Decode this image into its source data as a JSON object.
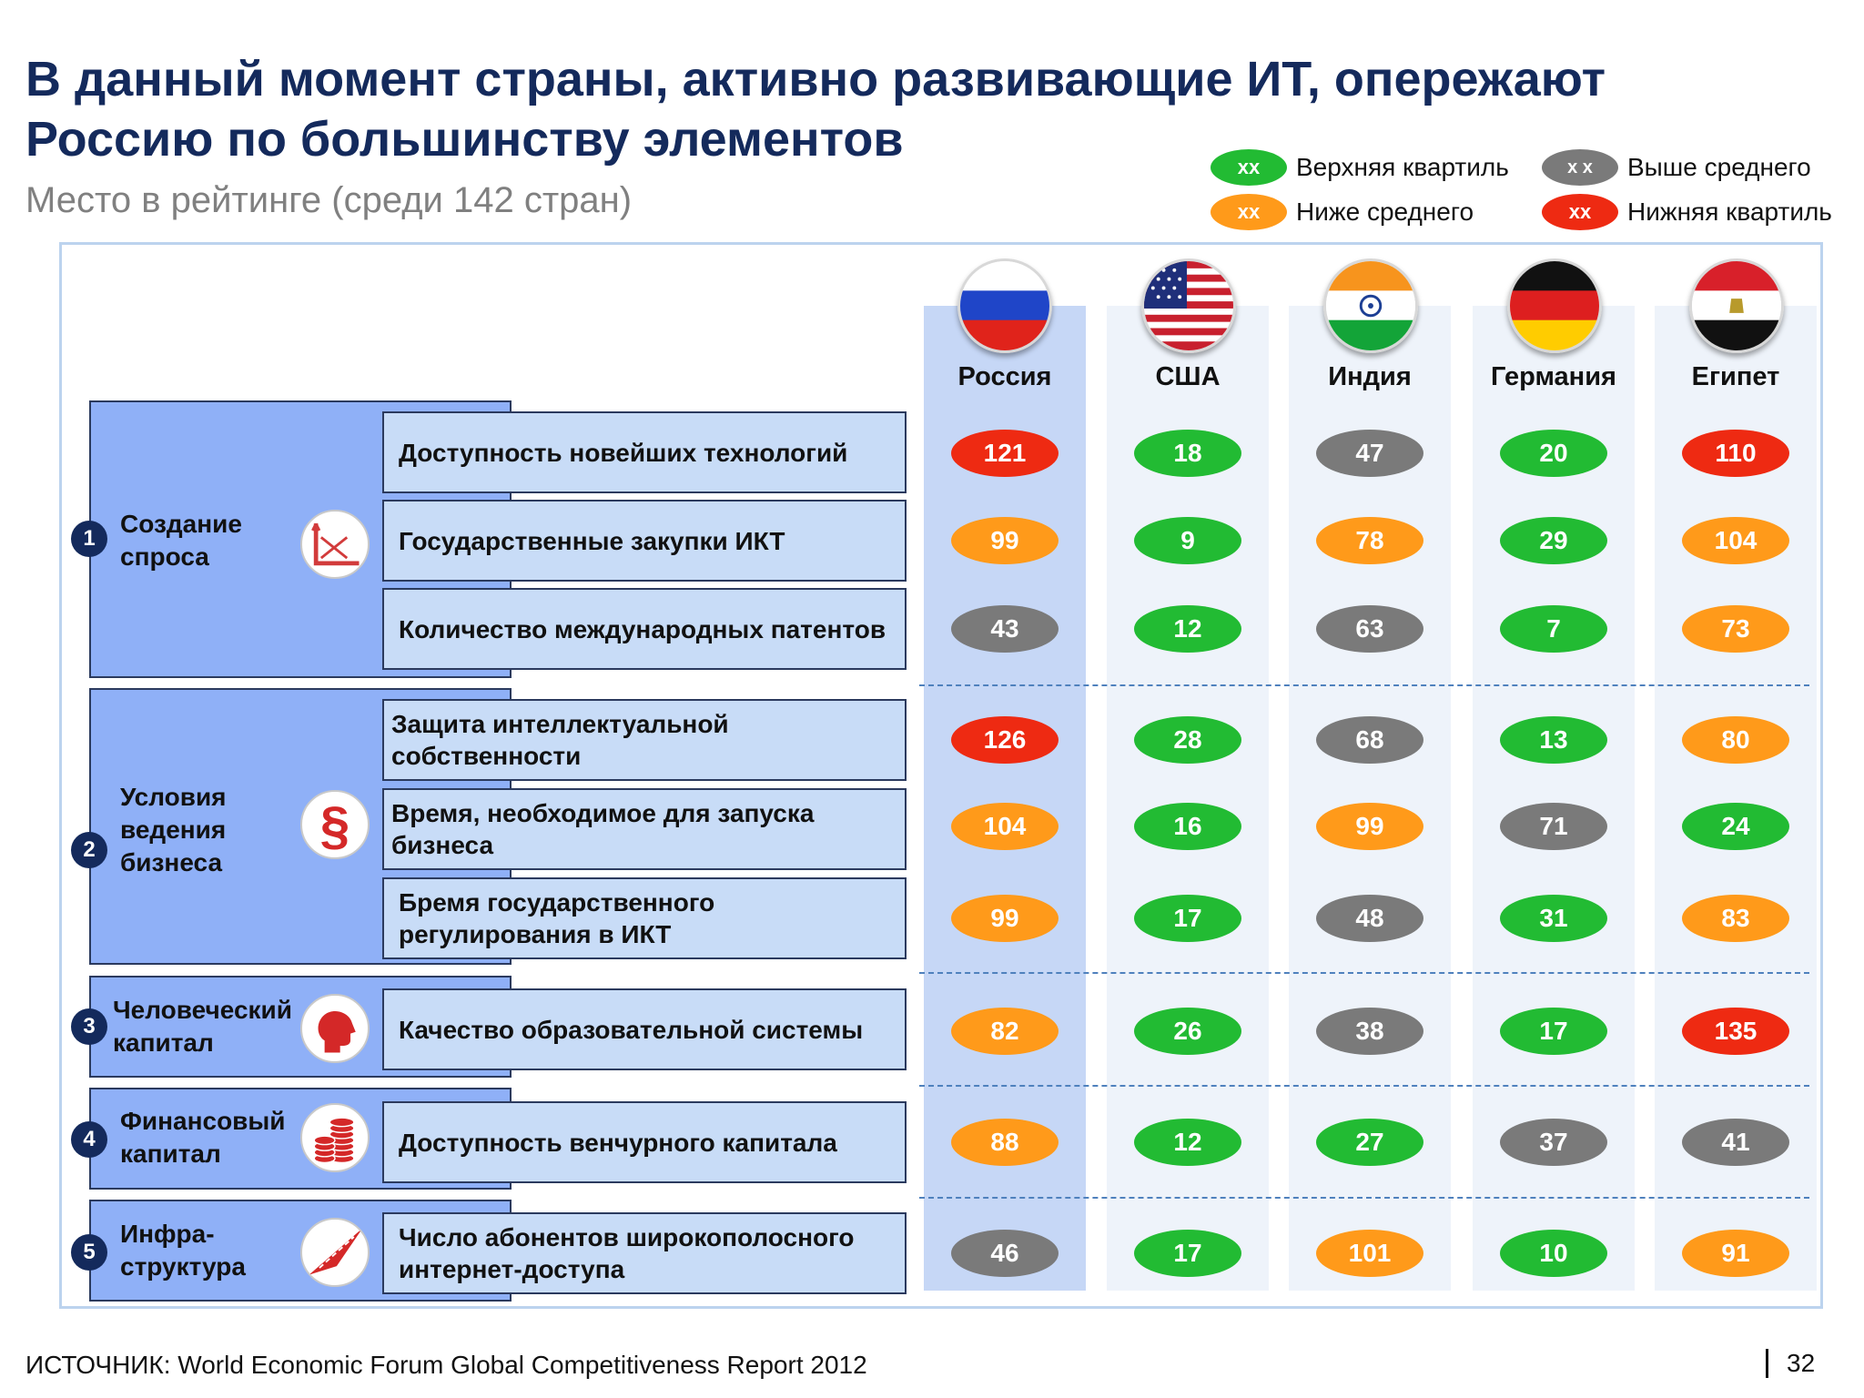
{
  "title": "В данный момент страны, активно развивающие ИТ, опережают Россию по большинству элементов",
  "subtitle": "Место в рейтинге (среди 142 стран)",
  "legend": {
    "green": {
      "pill": "xx",
      "label": "Верхняя квартиль",
      "color": "#22bb33"
    },
    "gray": {
      "pill": "x x",
      "label": "Выше среднего",
      "color": "#7a7a7a"
    },
    "orange": {
      "pill": "xx",
      "label": "Ниже среднего",
      "color": "#ff9a1a"
    },
    "red": {
      "pill": "xx",
      "label": "Нижняя квартиль",
      "color": "#ee2a12"
    }
  },
  "countries": [
    "Россия",
    "США",
    "Индия",
    "Германия",
    "Египет"
  ],
  "flags": [
    "russia-flag-icon",
    "usa-flag-icon",
    "india-flag-icon",
    "germany-flag-icon",
    "egypt-flag-icon"
  ],
  "categories": [
    {
      "num": "1",
      "label": "Создание спроса",
      "icon": "chart-icon"
    },
    {
      "num": "2",
      "label": "Условия ведения бизнеса",
      "icon": "paragraph-icon"
    },
    {
      "num": "3",
      "label": "Человеческий капитал",
      "icon": "head-icon"
    },
    {
      "num": "4",
      "label": "Финансовый капитал",
      "icon": "coins-icon"
    },
    {
      "num": "5",
      "label": "Инфра-структура",
      "icon": "road-icon"
    }
  ],
  "rows": [
    {
      "label": "Доступность новейших технологий",
      "values": [
        "121",
        "18",
        "47",
        "20",
        "110"
      ],
      "colors": [
        "red",
        "green",
        "gray",
        "green",
        "red"
      ]
    },
    {
      "label": "Государственные закупки ИКТ",
      "values": [
        "99",
        "9",
        "78",
        "29",
        "104"
      ],
      "colors": [
        "orange",
        "green",
        "orange",
        "green",
        "orange"
      ]
    },
    {
      "label": "Количество международных патентов",
      "values": [
        "43",
        "12",
        "63",
        "7",
        "73"
      ],
      "colors": [
        "gray",
        "green",
        "gray",
        "green",
        "orange"
      ]
    },
    {
      "label": "Защита интеллектуальной собственности",
      "values": [
        "126",
        "28",
        "68",
        "13",
        "80"
      ],
      "colors": [
        "red",
        "green",
        "gray",
        "green",
        "orange"
      ]
    },
    {
      "label": "Время, необходимое для запуска бизнеса",
      "values": [
        "104",
        "16",
        "99",
        "71",
        "24"
      ],
      "colors": [
        "orange",
        "green",
        "orange",
        "gray",
        "green"
      ]
    },
    {
      "label": "Бремя государственного регулирования в ИКТ",
      "values": [
        "99",
        "17",
        "48",
        "31",
        "83"
      ],
      "colors": [
        "orange",
        "green",
        "gray",
        "green",
        "orange"
      ]
    },
    {
      "label": "Качество образовательной системы",
      "values": [
        "82",
        "26",
        "38",
        "17",
        "135"
      ],
      "colors": [
        "orange",
        "green",
        "gray",
        "green",
        "red"
      ]
    },
    {
      "label": "Доступность венчурного капитала",
      "values": [
        "88",
        "12",
        "27",
        "37",
        "41"
      ],
      "colors": [
        "orange",
        "green",
        "green",
        "gray",
        "gray"
      ]
    },
    {
      "label": "Число абонентов широкополосного интернет-доступа",
      "values": [
        "46",
        "17",
        "101",
        "10",
        "91"
      ],
      "colors": [
        "gray",
        "green",
        "orange",
        "green",
        "orange"
      ]
    }
  ],
  "source": "ИСТОЧНИК: World Economic Forum Global Competitiveness Report 2012",
  "page_number": "32"
}
